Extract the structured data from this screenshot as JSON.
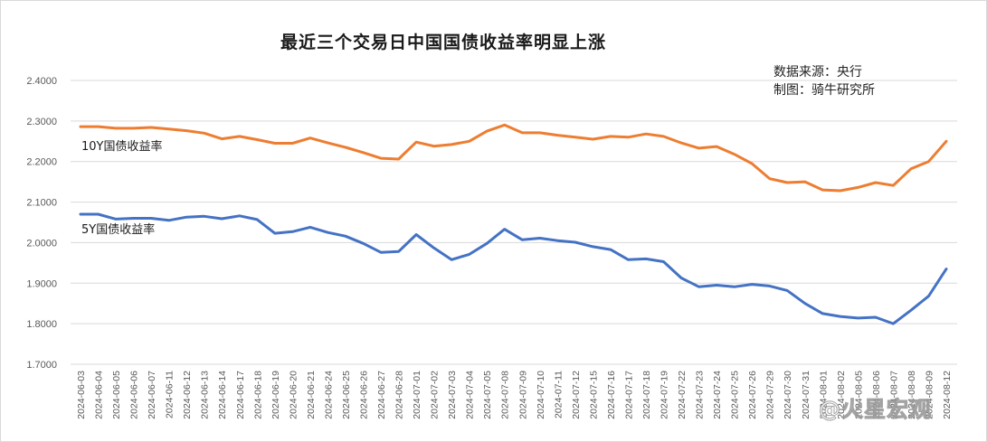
{
  "title": "最近三个交易日中国国债收益率明显上涨",
  "source_line1": "数据来源：央行",
  "source_line2": "制图：骑牛研究所",
  "watermark": "@火星宏观",
  "colors": {
    "y10": "#ED7D31",
    "y5": "#4472C4",
    "grid": "#d9d9d9"
  },
  "chart_data": {
    "type": "line",
    "title": "最近三个交易日中国国债收益率明显上涨",
    "xlabel": "",
    "ylabel": "",
    "ylim": [
      1.7,
      2.4
    ],
    "yticks": [
      "2.4000",
      "2.3000",
      "2.2000",
      "2.1000",
      "2.0000",
      "1.9000",
      "1.8000",
      "1.7000"
    ],
    "grid": true,
    "legend_position": "inline labels",
    "x": [
      "2024-06-03",
      "2024-06-04",
      "2024-06-05",
      "2024-06-06",
      "2024-06-07",
      "2024-06-11",
      "2024-06-12",
      "2024-06-13",
      "2024-06-14",
      "2024-06-17",
      "2024-06-18",
      "2024-06-19",
      "2024-06-20",
      "2024-06-21",
      "2024-06-24",
      "2024-06-25",
      "2024-06-26",
      "2024-06-27",
      "2024-06-28",
      "2024-07-01",
      "2024-07-02",
      "2024-07-03",
      "2024-07-04",
      "2024-07-05",
      "2024-07-08",
      "2024-07-09",
      "2024-07-10",
      "2024-07-11",
      "2024-07-12",
      "2024-07-15",
      "2024-07-16",
      "2024-07-17",
      "2024-07-18",
      "2024-07-19",
      "2024-07-22",
      "2024-07-23",
      "2024-07-24",
      "2024-07-25",
      "2024-07-26",
      "2024-07-29",
      "2024-07-30",
      "2024-07-31",
      "2024-08-01",
      "2024-08-02",
      "2024-08-05",
      "2024-08-06",
      "2024-08-07",
      "2024-08-08",
      "2024-08-09",
      "2024-08-12"
    ],
    "series": [
      {
        "name": "10Y国债收益率",
        "color": "#ED7D31",
        "values": [
          2.286,
          2.286,
          2.282,
          2.282,
          2.284,
          2.28,
          2.276,
          2.27,
          2.256,
          2.262,
          2.254,
          2.245,
          2.245,
          2.258,
          2.246,
          2.235,
          2.222,
          2.208,
          2.206,
          2.248,
          2.238,
          2.242,
          2.25,
          2.275,
          2.29,
          2.271,
          2.271,
          2.265,
          2.26,
          2.255,
          2.262,
          2.26,
          2.268,
          2.262,
          2.246,
          2.233,
          2.237,
          2.218,
          2.195,
          2.158,
          2.148,
          2.15,
          2.13,
          2.128,
          2.136,
          2.148,
          2.141,
          2.182,
          2.2,
          2.25
        ]
      },
      {
        "name": "5Y国债收益率",
        "color": "#4472C4",
        "values": [
          2.07,
          2.07,
          2.058,
          2.06,
          2.06,
          2.055,
          2.063,
          2.065,
          2.059,
          2.066,
          2.057,
          2.023,
          2.027,
          2.038,
          2.025,
          2.016,
          1.998,
          1.976,
          1.978,
          2.02,
          1.987,
          1.958,
          1.971,
          1.998,
          2.033,
          2.007,
          2.011,
          2.005,
          2.001,
          1.99,
          1.983,
          1.958,
          1.96,
          1.953,
          1.913,
          1.891,
          1.895,
          1.891,
          1.897,
          1.893,
          1.882,
          1.85,
          1.825,
          1.818,
          1.814,
          1.816,
          1.8,
          1.833,
          1.868,
          1.935
        ]
      }
    ]
  }
}
